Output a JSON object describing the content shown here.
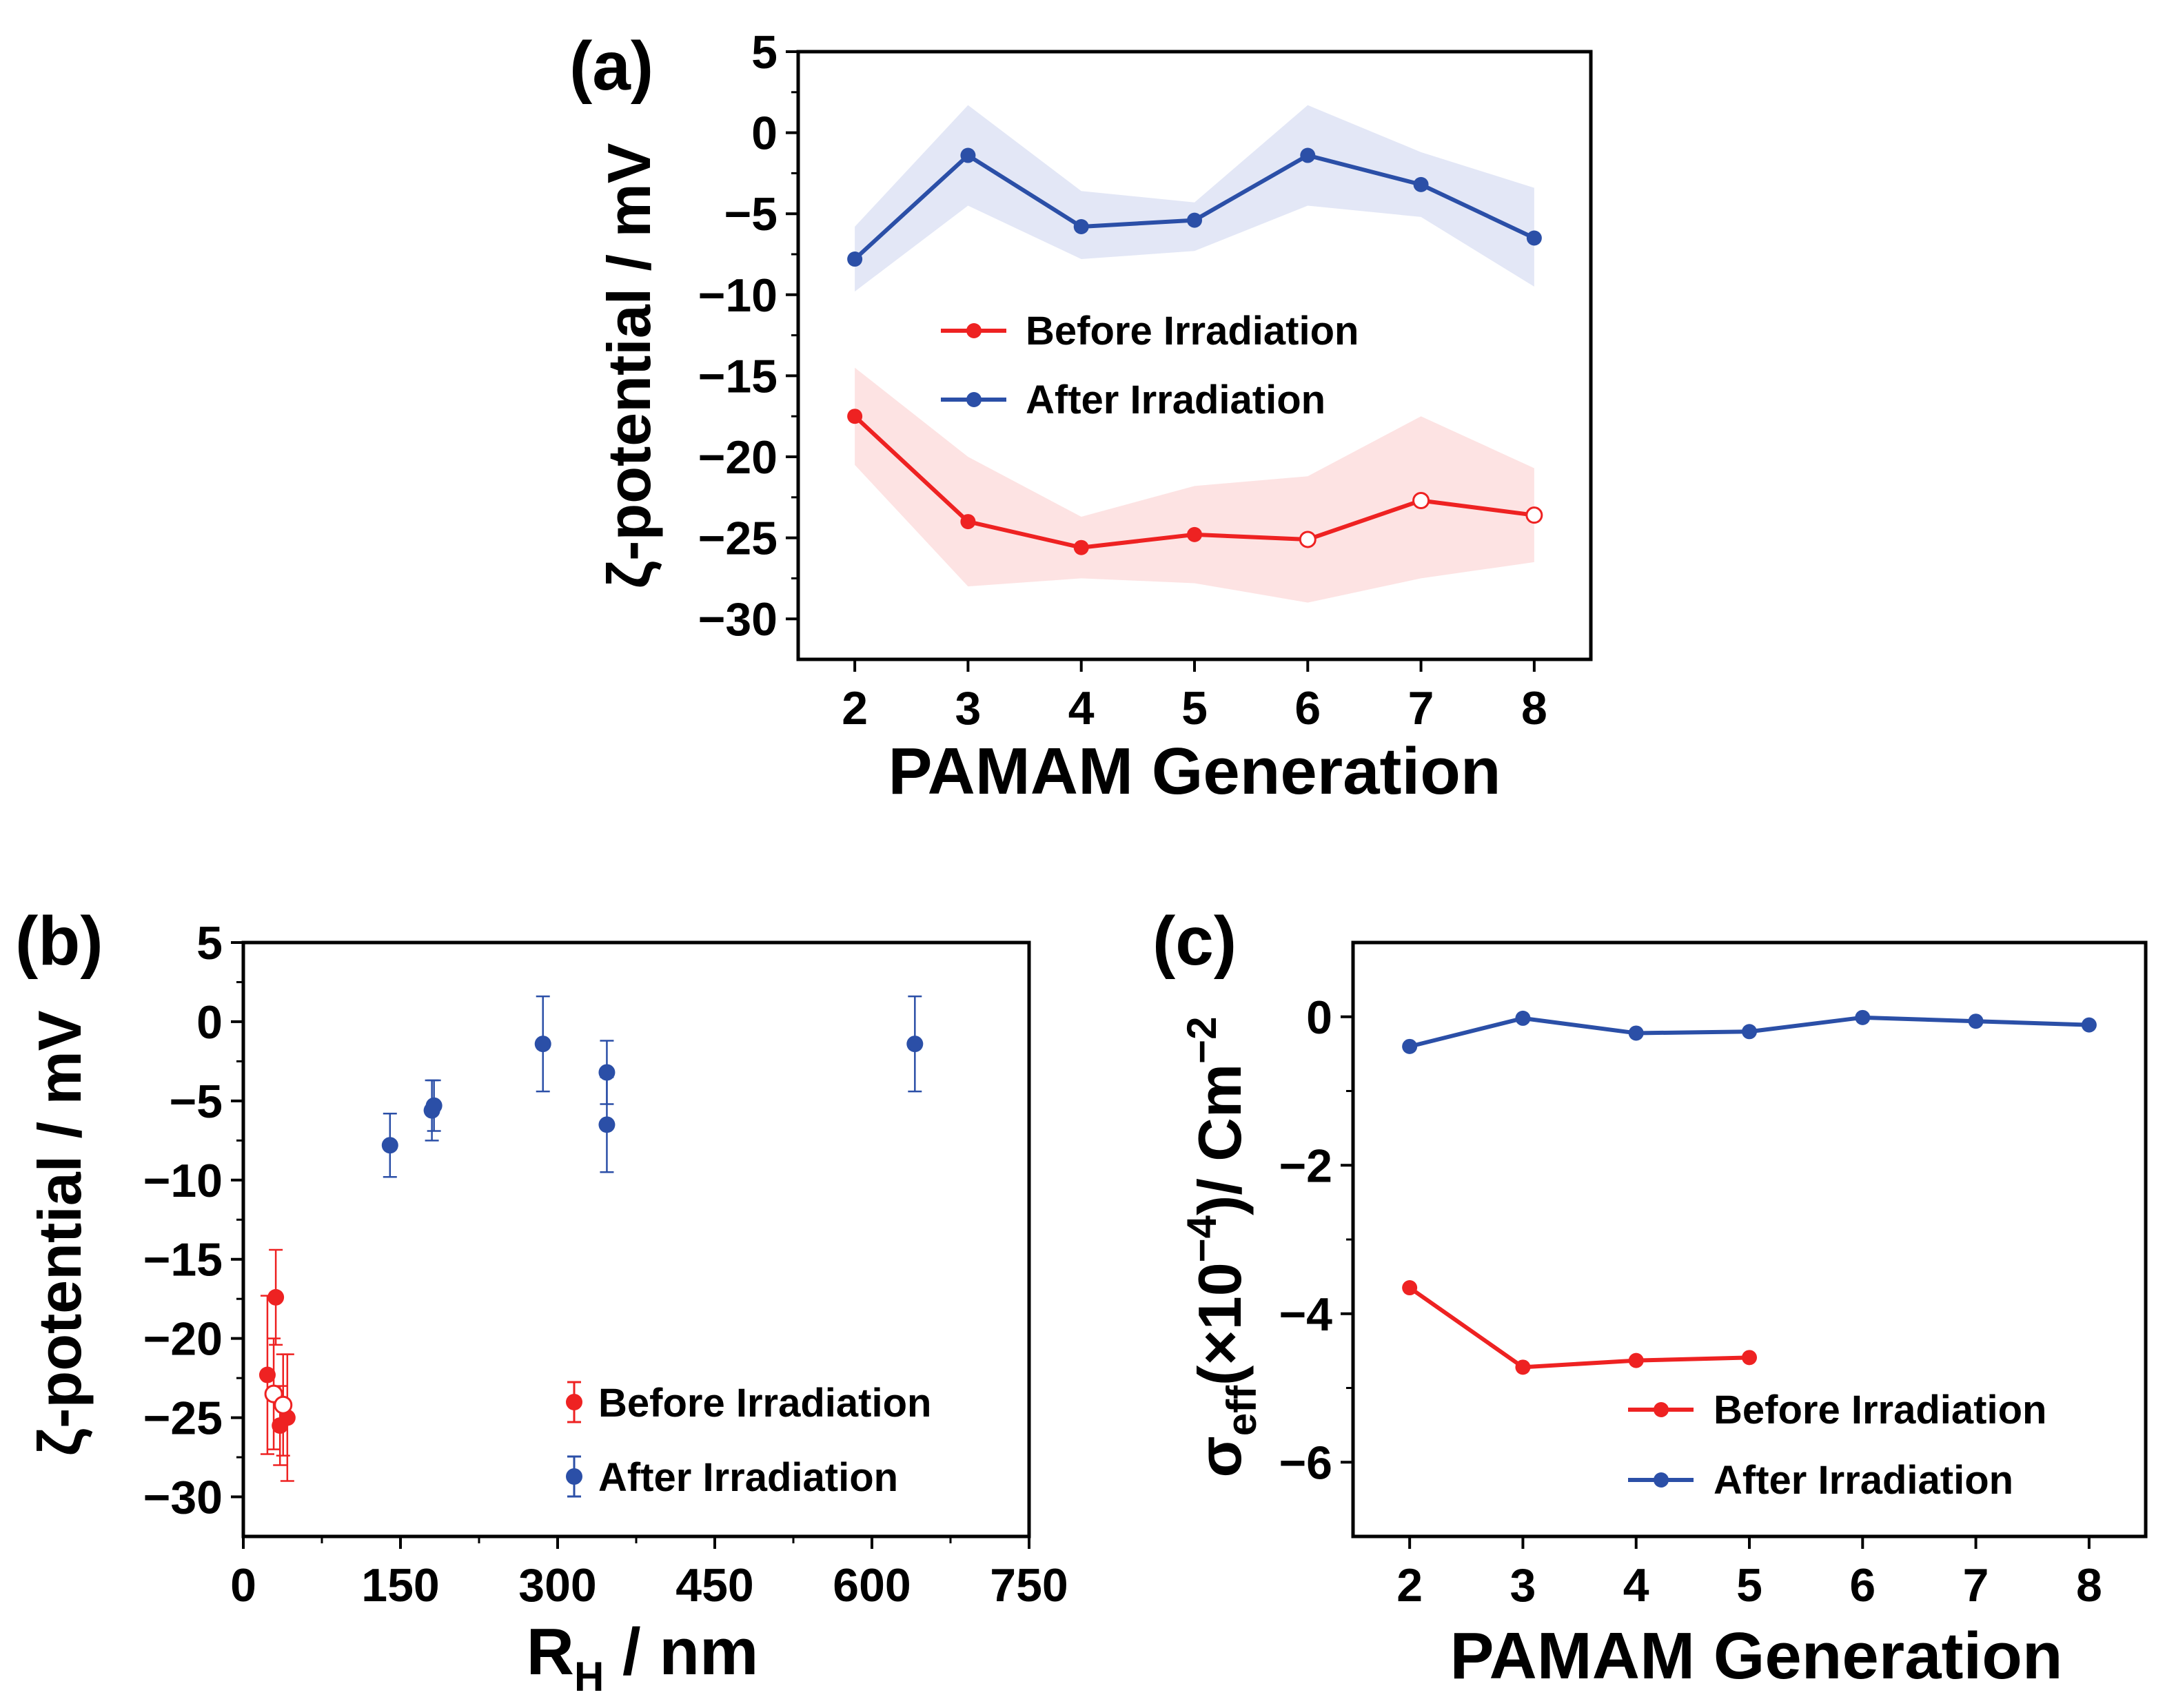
{
  "colors": {
    "before": "#ee2222",
    "after": "#2b4fa7",
    "before_band": "#fde3e3",
    "after_band": "#e3e7f6"
  },
  "chart_data": [
    {
      "id": "a",
      "panel_label": "(a)",
      "type": "line",
      "xlabel": "PAMAM Generation",
      "ylabel": "ζ-potential / mV",
      "xlim": [
        1.5,
        8.5
      ],
      "ylim": [
        -32.5,
        5
      ],
      "xticks": [
        "2",
        "3",
        "4",
        "5",
        "6",
        "7",
        "8"
      ],
      "yticks": [
        "5",
        "0",
        "−5",
        "−10",
        "−15",
        "−20",
        "−25",
        "−30"
      ],
      "x": [
        2,
        3,
        4,
        5,
        6,
        7,
        8
      ],
      "series": [
        {
          "name": "Before Irradiation",
          "values": [
            -17.5,
            -24,
            -25.6,
            -24.8,
            -25.1,
            -22.7,
            -23.6
          ],
          "band_low": [
            -20.5,
            -28,
            -27.5,
            -27.8,
            -29,
            -27.5,
            -26.5
          ],
          "band_high": [
            -14.5,
            -20,
            -23.7,
            -21.8,
            -21.2,
            -17.5,
            -20.7
          ],
          "open_markers": [
            4,
            5,
            6
          ]
        },
        {
          "name": "After Irradiation",
          "values": [
            -7.8,
            -1.4,
            -5.8,
            -5.4,
            -1.4,
            -3.2,
            -6.5
          ],
          "band_low": [
            -9.8,
            -4.5,
            -7.8,
            -7.3,
            -4.5,
            -5.2,
            -9.5
          ],
          "band_high": [
            -5.8,
            1.7,
            -3.6,
            -4.3,
            1.7,
            -1.2,
            -3.4
          ],
          "open_markers": []
        }
      ]
    },
    {
      "id": "b",
      "panel_label": "(b)",
      "type": "scatter",
      "xlabel_main": "R",
      "xlabel_sub": "H",
      "xlabel_rest": " / nm",
      "ylabel": "ζ-potential / mV",
      "xlim": [
        0,
        750
      ],
      "ylim": [
        -32.5,
        5
      ],
      "xticks": [
        "0",
        "150",
        "300",
        "450",
        "600",
        "750"
      ],
      "yticks": [
        "5",
        "0",
        "−5",
        "−10",
        "−15",
        "−20",
        "−25",
        "−30"
      ],
      "series": [
        {
          "name": "Before Irradiation",
          "points": [
            {
              "x": 23,
              "y": -22.3,
              "err": 5,
              "xerr": 4,
              "open": false
            },
            {
              "x": 31,
              "y": -17.4,
              "err": 3,
              "xerr": 4,
              "open": false
            },
            {
              "x": 35,
              "y": -25.5,
              "err": 2.5,
              "xerr": 4,
              "open": false
            },
            {
              "x": 42,
              "y": -25,
              "err": 4,
              "xerr": 5,
              "open": false
            },
            {
              "x": 29,
              "y": -23.5,
              "err": 3.5,
              "xerr": 4,
              "open": true
            },
            {
              "x": 38,
              "y": -24.2,
              "err": 3.2,
              "xerr": 4,
              "open": true
            }
          ]
        },
        {
          "name": "After Irradiation",
          "points": [
            {
              "x": 140,
              "y": -7.8,
              "err": 2,
              "xerr": 0,
              "open": false
            },
            {
              "x": 180,
              "y": -5.6,
              "err": 1.9,
              "xerr": 0,
              "open": false
            },
            {
              "x": 182,
              "y": -5.3,
              "err": 1.6,
              "xerr": 0,
              "open": false
            },
            {
              "x": 286,
              "y": -1.4,
              "err": 3,
              "xerr": 0,
              "open": false
            },
            {
              "x": 347,
              "y": -3.2,
              "err": 2,
              "xerr": 0,
              "open": false
            },
            {
              "x": 347,
              "y": -6.5,
              "err": 3,
              "xerr": 0,
              "open": false
            },
            {
              "x": 641,
              "y": -1.4,
              "err": 3,
              "xerr": 0,
              "open": false
            }
          ]
        }
      ]
    },
    {
      "id": "c",
      "panel_label": "(c)",
      "type": "line",
      "xlabel": "PAMAM Generation",
      "ylabel_symbol": "σ",
      "ylabel_sub": "eff",
      "ylabel_mid": "(×10",
      "ylabel_exp1": "−4",
      "ylabel_end": ")/ Cm",
      "ylabel_exp2": "−2",
      "xlim": [
        1.5,
        8.5
      ],
      "ylim": [
        -7,
        1
      ],
      "xticks": [
        "2",
        "3",
        "4",
        "5",
        "6",
        "7",
        "8"
      ],
      "yticks": [
        "0",
        "−2",
        "−4",
        "−6"
      ],
      "x": [
        2,
        3,
        4,
        5,
        6,
        7,
        8
      ],
      "series": [
        {
          "name": "Before Irradiation",
          "x": [
            2,
            3,
            4,
            5
          ],
          "values": [
            -3.65,
            -4.72,
            -4.63,
            -4.59
          ]
        },
        {
          "name": "After Irradiation",
          "x": [
            2,
            3,
            4,
            5,
            6,
            7,
            8
          ],
          "values": [
            -0.4,
            -0.02,
            -0.22,
            -0.2,
            -0.01,
            -0.06,
            -0.11
          ]
        }
      ]
    }
  ]
}
